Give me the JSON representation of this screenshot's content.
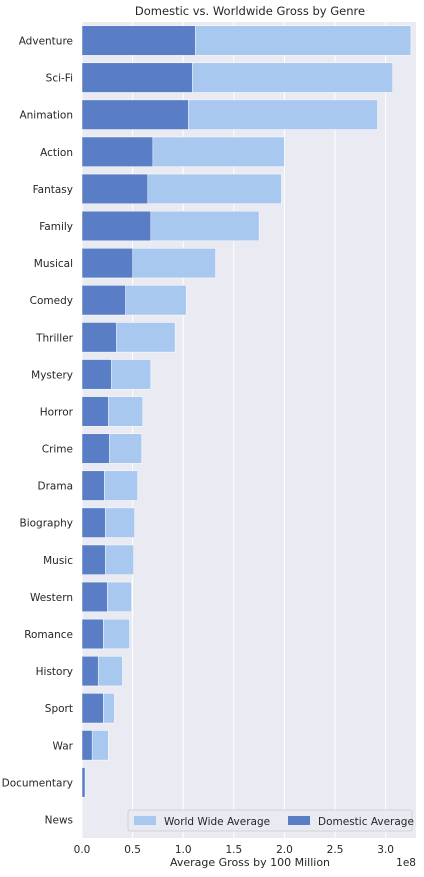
{
  "chart_data": {
    "type": "bar",
    "orientation": "horizontal",
    "title": "Domestic vs. Worldwide Gross by Genre",
    "xlabel": "Average Gross by 100 Million",
    "ylabel": "",
    "x_offset_text": "1e8",
    "xlim": [
      0,
      3.3
    ],
    "xticks": [
      "0.0",
      "0.5",
      "1.0",
      "1.5",
      "2.0",
      "2.5",
      "3.0"
    ],
    "grid": true,
    "legend_position": "lower-right",
    "categories": [
      "Adventure",
      "Sci-Fi",
      "Animation",
      "Action",
      "Fantasy",
      "Family",
      "Musical",
      "Comedy",
      "Thriller",
      "Mystery",
      "Horror",
      "Crime",
      "Drama",
      "Biography",
      "Music",
      "Western",
      "Romance",
      "History",
      "Sport",
      "War",
      "Documentary",
      "News"
    ],
    "series": [
      {
        "name": "World Wide Average",
        "color": "#a9c8ef",
        "values": [
          3.25,
          3.07,
          2.92,
          2.0,
          1.97,
          1.75,
          1.32,
          1.03,
          0.92,
          0.68,
          0.6,
          0.59,
          0.55,
          0.52,
          0.51,
          0.49,
          0.47,
          0.4,
          0.32,
          0.26,
          0.03,
          0.0
        ]
      },
      {
        "name": "Domestic Average",
        "color": "#5a7ec6",
        "values": [
          1.12,
          1.09,
          1.05,
          0.7,
          0.65,
          0.68,
          0.5,
          0.43,
          0.34,
          0.29,
          0.26,
          0.27,
          0.22,
          0.23,
          0.23,
          0.25,
          0.21,
          0.16,
          0.21,
          0.1,
          0.03,
          0.0
        ]
      }
    ]
  },
  "colors": {
    "plot_bg": "#eaeaf2",
    "grid": "#ffffff",
    "text": "#262626"
  }
}
